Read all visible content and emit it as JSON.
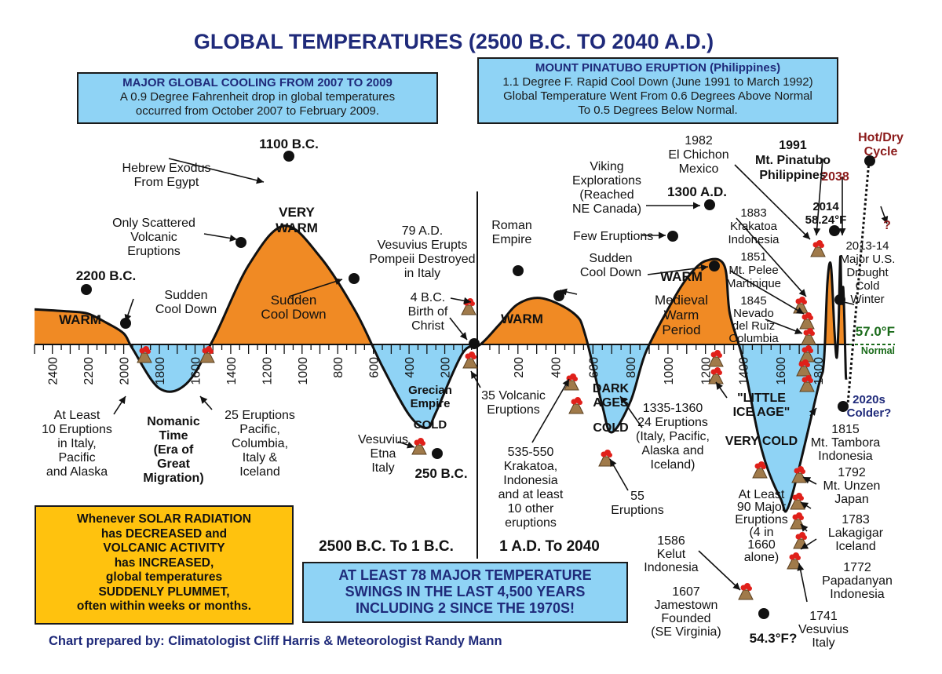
{
  "title": "GLOBAL TEMPERATURES (2500 B.C. TO 2040 A.D.)",
  "footer": "Chart prepared by: Climatologist Cliff Harris & Meteorologist Randy Mann",
  "colors": {
    "warm": "#f08a24",
    "cold": "#8fd3f5",
    "title": "#1f2a7a",
    "hot_dry": "#8b1a1a",
    "normal": "#1a6b1a",
    "solar_box": "#ffc20e"
  },
  "boxes": {
    "cooling": {
      "heading": "MAJOR GLOBAL COOLING FROM 2007 TO 2009",
      "lines": [
        "A 0.9 Degree Fahrenheit drop in global temperatures",
        "occurred from October 2007 to February 2009."
      ]
    },
    "pinatubo": {
      "heading": "MOUNT PINATUBO ERUPTION (Philippines)",
      "lines": [
        "1.1 Degree F. Rapid Cool Down (June 1991 to March 1992)",
        "Global Temperature Went From 0.6 Degrees Above Normal",
        "To 0.5 Degrees Below Normal."
      ]
    },
    "solar": {
      "lines": [
        "Whenever SOLAR RADIATION",
        "has DECREASED and",
        "VOLCANIC ACTIVITY",
        "has INCREASED,",
        "global temperatures",
        "SUDDENLY PLUMMET,",
        "often within weeks or months."
      ]
    },
    "swings": {
      "lines": [
        "AT LEAST 78 MAJOR TEMPERATURE",
        "SWINGS IN THE LAST 4,500 YEARS",
        "INCLUDING 2 SINCE THE 1970S!"
      ]
    }
  },
  "chart_data": {
    "type": "area",
    "title": "GLOBAL TEMPERATURES (2500 B.C. TO 2040 A.D.)",
    "x_unit": "year (negative = B.C.)",
    "y_unit": "relative temperature (warm above / cold below normal line)",
    "baseline_label": "57.0°F",
    "baseline_sublabel": "Normal",
    "panels": [
      {
        "label": "2500 B.C. To 1 B.C.",
        "ticks": [
          "2400",
          "2200",
          "2000",
          "1800",
          "1600",
          "1400",
          "1200",
          "1000",
          "800",
          "600",
          "400",
          "200"
        ]
      },
      {
        "label": "1 A.D. To 2040",
        "ticks": [
          "200",
          "400",
          "600",
          "800",
          "1000",
          "1200",
          "1400",
          "1600",
          "1800"
        ]
      }
    ],
    "series": [
      {
        "x": [
          -2500,
          -2300,
          -2200,
          -2100,
          -2000,
          -1950,
          -1800,
          -1650,
          -1500,
          -1300,
          -1100,
          -900,
          -700,
          -550,
          -400,
          -300,
          -250,
          -100,
          0,
          100,
          200,
          330,
          500,
          560,
          650,
          700,
          800,
          880,
          1000,
          1100,
          1200,
          1300,
          1330,
          1400,
          1500,
          1600,
          1650,
          1800,
          1850,
          1880,
          1910,
          1940,
          1960,
          1975,
          1990,
          2000,
          2014,
          2025,
          2035,
          2040
        ],
        "y": [
          0.8,
          0.75,
          0.7,
          0.5,
          0.25,
          -0.1,
          -1.0,
          -0.9,
          0.1,
          1.8,
          2.7,
          2.0,
          0.75,
          -0.5,
          -1.6,
          -1.9,
          -1.55,
          -0.2,
          0,
          0.45,
          0.92,
          1.05,
          0.7,
          0.2,
          -1.4,
          -2.0,
          -1.3,
          -0.2,
          0.8,
          1.5,
          1.9,
          1.8,
          0.7,
          -0.35,
          -2.4,
          -3.5,
          -3.6,
          -1.0,
          -0.4,
          1.4,
          1.8,
          0.3,
          -0.3,
          0.5,
          2.0,
          1.0,
          1.3,
          0.5,
          -0.6,
          -0.8
        ]
      }
    ],
    "points": [
      {
        "label": "2200 B.C.",
        "x": -2200
      },
      {
        "label": "Sudden Cool Down",
        "x": -2000
      },
      {
        "label": "Only Scattered Volcanic Eruptions",
        "x": -1300
      },
      {
        "label": "1100 B.C.",
        "x": -1100
      },
      {
        "label": "Sudden Cool Down",
        "x": -700
      },
      {
        "label": "250 B.C.",
        "x": -250
      },
      {
        "label": "4 B.C. Birth of Christ",
        "x": 0
      },
      {
        "label": "Roman Empire",
        "x": 200
      },
      {
        "label": "Sudden Cool Down",
        "x": 500
      },
      {
        "label": "Few Eruptions",
        "x": 1100
      },
      {
        "label": "1300 A.D.",
        "x": 1300
      },
      {
        "label": "Medieval Warm Period end",
        "x": 1330
      },
      {
        "label": "54.3°F?",
        "x": 1660
      },
      {
        "label": "2014 58.24°F",
        "x": 2014
      },
      {
        "label": "2013-14 Major U.S. Drought Cold Winter",
        "x": 2013
      },
      {
        "label": "2020s Colder?",
        "x": 2025
      },
      {
        "label": "2038",
        "x": 2038
      }
    ],
    "region_labels": [
      {
        "lines": [
          "WARM"
        ]
      },
      {
        "lines": [
          "VERY",
          "WARM"
        ]
      },
      {
        "lines": [
          "Sudden",
          "Cool Down"
        ]
      },
      {
        "lines": [
          "WARM"
        ]
      },
      {
        "lines": [
          "WARM"
        ]
      },
      {
        "lines": [
          "Medieval",
          "Warm",
          "Period"
        ]
      },
      {
        "lines": [
          "Grecian",
          "Empire"
        ]
      },
      {
        "lines": [
          "COLD"
        ]
      },
      {
        "lines": [
          "DARK",
          "AGES"
        ]
      },
      {
        "lines": [
          "COLD"
        ]
      },
      {
        "lines": [
          "\"LITTLE",
          "ICE AGE\""
        ]
      },
      {
        "lines": [
          "VERY COLD"
        ]
      },
      {
        "lines": [
          "At Least",
          "90 Major",
          "Eruptions",
          "(4 in",
          "1660",
          "alone)"
        ]
      }
    ],
    "annotations": [
      {
        "lines": [
          "2200 B.C."
        ]
      },
      {
        "lines": [
          "Sudden",
          "Cool Down"
        ]
      },
      {
        "lines": [
          "1100 B.C."
        ]
      },
      {
        "lines": [
          "Hebrew Exodus",
          "From Egypt"
        ]
      },
      {
        "lines": [
          "Only Scattered",
          "Volcanic",
          "Eruptions"
        ]
      },
      {
        "lines": [
          "79 A.D.",
          "Vesuvius Erupts",
          "Pompeii Destroyed",
          "in Italy"
        ]
      },
      {
        "lines": [
          "4 B.C.",
          "Birth of",
          "Christ"
        ]
      },
      {
        "lines": [
          "Roman",
          "Empire"
        ]
      },
      {
        "lines": [
          "Sudden",
          "Cool Down"
        ]
      },
      {
        "lines": [
          "Few Eruptions"
        ]
      },
      {
        "lines": [
          "Viking",
          "Explorations",
          "(Reached",
          "NE Canada)"
        ]
      },
      {
        "lines": [
          "1300 A.D."
        ]
      },
      {
        "lines": [
          "1982",
          "El Chichon",
          "Mexico"
        ]
      },
      {
        "lines": [
          "1991",
          "Mt. Pinatubo",
          "Philippines"
        ]
      },
      {
        "lines": [
          "Hot/Dry",
          "Cycle"
        ]
      },
      {
        "lines": [
          "2038"
        ]
      },
      {
        "lines": [
          "?"
        ]
      },
      {
        "lines": [
          "2014",
          "58.24°F"
        ]
      },
      {
        "lines": [
          "2013-14",
          "Major U.S.",
          "Drought",
          "Cold",
          "Winter"
        ]
      },
      {
        "lines": [
          "1883",
          "Krakatoa",
          "Indonesia"
        ]
      },
      {
        "lines": [
          "1851",
          "Mt. Pelee",
          "Martinique"
        ]
      },
      {
        "lines": [
          "1845",
          "Nevado",
          "del Ruiz",
          "Columbia"
        ]
      },
      {
        "lines": [
          "2020s",
          "Colder?"
        ]
      },
      {
        "lines": [
          "At Least",
          "10 Eruptions",
          "in Italy,",
          "Pacific",
          "and Alaska"
        ]
      },
      {
        "lines": [
          "Nomanic",
          "Time",
          "(Era of",
          "Great",
          "Migration)"
        ]
      },
      {
        "lines": [
          "25 Eruptions",
          "Pacific,",
          "Columbia,",
          "Italy &",
          "Iceland"
        ]
      },
      {
        "lines": [
          "35 Volcanic",
          "Eruptions"
        ]
      },
      {
        "lines": [
          "Vesuvius",
          "Etna",
          "Italy"
        ]
      },
      {
        "lines": [
          "250 B.C."
        ]
      },
      {
        "lines": [
          "535-550",
          "Krakatoa,",
          "Indonesia",
          "and at least",
          "10 other",
          "eruptions"
        ]
      },
      {
        "lines": [
          "55",
          "Eruptions"
        ]
      },
      {
        "lines": [
          "1335-1360",
          "24 Eruptions",
          "(Italy, Pacific,",
          "Alaska and",
          "Iceland)"
        ]
      },
      {
        "lines": [
          "1815",
          "Mt. Tambora",
          "Indonesia"
        ]
      },
      {
        "lines": [
          "1792",
          "Mt. Unzen",
          "Japan"
        ]
      },
      {
        "lines": [
          "1783",
          "Lakagigar",
          "Iceland"
        ]
      },
      {
        "lines": [
          "1772",
          "Papadanyan",
          "Indonesia"
        ]
      },
      {
        "lines": [
          "1741",
          "Vesuvius",
          "Italy"
        ]
      },
      {
        "lines": [
          "1586",
          "Kelut",
          "Indonesia"
        ]
      },
      {
        "lines": [
          "1607",
          "Jamestown",
          "Founded",
          "(SE Virginia)"
        ]
      },
      {
        "lines": [
          "54.3°F?"
        ]
      }
    ]
  }
}
